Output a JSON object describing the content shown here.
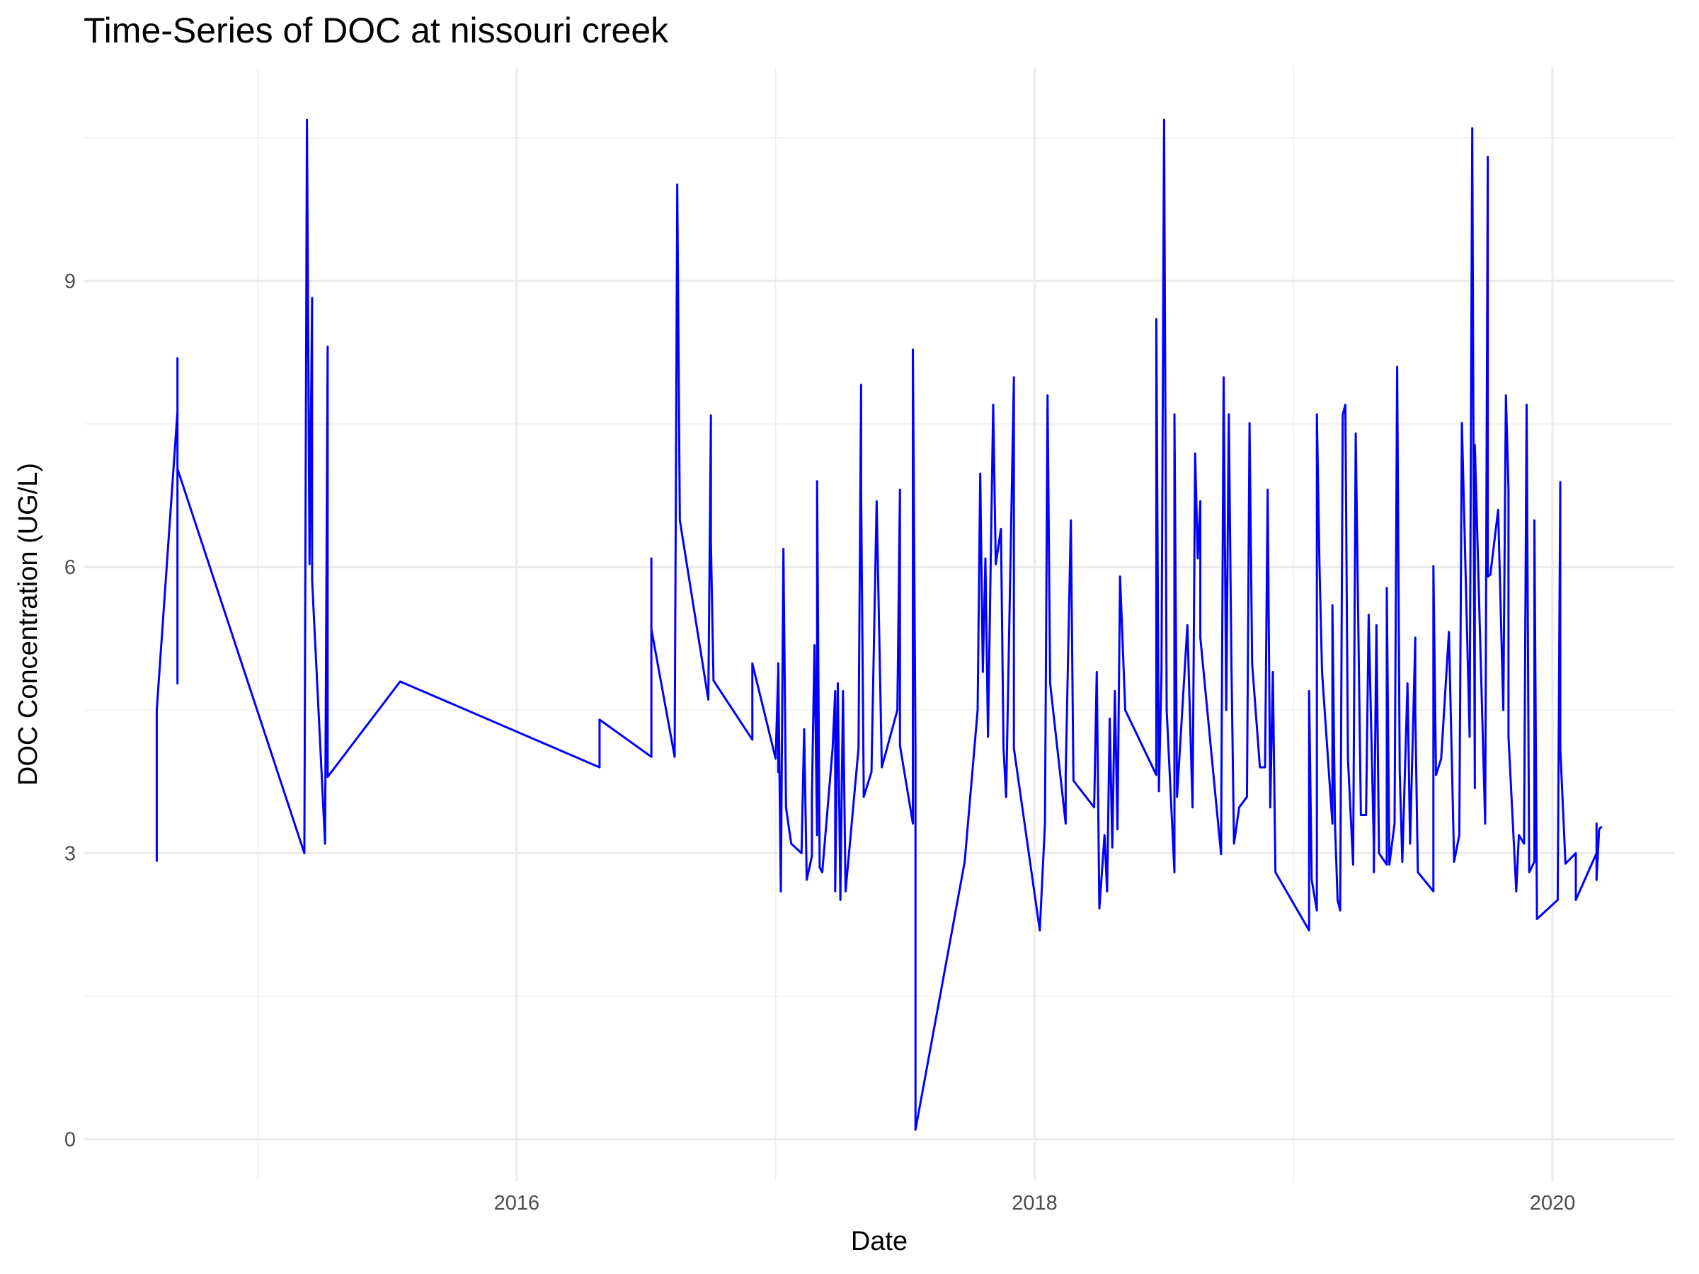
{
  "chart_data": {
    "type": "line",
    "title": "Time-Series of DOC at nissouri creek",
    "x_label": "Date",
    "y_label": "DOC Concentration (UG/L)",
    "color": "#0000ff",
    "grid": true,
    "xlim": [
      2014.33,
      2020.47
    ],
    "ylim": [
      -0.44,
      11.24
    ],
    "xticks": [
      2016,
      2018,
      2020
    ],
    "yticks": [
      0,
      3,
      6,
      9
    ],
    "x": [
      2014.61,
      2014.61,
      2014.69,
      2014.69,
      2014.69,
      2014.69,
      2015.18,
      2015.19,
      2015.2,
      2015.21,
      2015.21,
      2015.26,
      2015.27,
      2015.27,
      2015.55,
      2016.32,
      2016.32,
      2016.52,
      2016.52,
      2016.52,
      2016.61,
      2016.62,
      2016.63,
      2016.74,
      2016.75,
      2016.75,
      2016.76,
      2016.91,
      2016.91,
      2017.0,
      2017.01,
      2017.01,
      2017.01,
      2017.02,
      2017.03,
      2017.04,
      2017.06,
      2017.1,
      2017.11,
      2017.12,
      2017.14,
      2017.14,
      2017.15,
      2017.16,
      2017.16,
      2017.17,
      2017.18,
      2017.22,
      2017.23,
      2017.23,
      2017.24,
      2017.25,
      2017.26,
      2017.27,
      2017.32,
      2017.33,
      2017.33,
      2017.34,
      2017.34,
      2017.37,
      2017.39,
      2017.41,
      2017.47,
      2017.48,
      2017.48,
      2017.53,
      2017.53,
      2017.54,
      2017.54,
      2017.73,
      2017.78,
      2017.79,
      2017.8,
      2017.81,
      2017.82,
      2017.84,
      2017.85,
      2017.87,
      2017.88,
      2017.89,
      2017.92,
      2017.92,
      2018.02,
      2018.04,
      2018.05,
      2018.06,
      2018.12,
      2018.12,
      2018.14,
      2018.15,
      2018.23,
      2018.24,
      2018.25,
      2018.27,
      2018.28,
      2018.29,
      2018.3,
      2018.31,
      2018.32,
      2018.33,
      2018.35,
      2018.47,
      2018.47,
      2018.48,
      2018.49,
      2018.5,
      2018.51,
      2018.54,
      2018.54,
      2018.55,
      2018.59,
      2018.61,
      2018.62,
      2018.63,
      2018.64,
      2018.64,
      2018.72,
      2018.73,
      2018.74,
      2018.75,
      2018.76,
      2018.77,
      2018.79,
      2018.82,
      2018.83,
      2018.84,
      2018.87,
      2018.89,
      2018.9,
      2018.91,
      2018.92,
      2018.93,
      2019.06,
      2019.06,
      2019.07,
      2019.09,
      2019.09,
      2019.1,
      2019.11,
      2019.15,
      2019.15,
      2019.16,
      2019.17,
      2019.18,
      2019.19,
      2019.2,
      2019.21,
      2019.23,
      2019.24,
      2019.26,
      2019.28,
      2019.29,
      2019.31,
      2019.31,
      2019.32,
      2019.33,
      2019.36,
      2019.36,
      2019.37,
      2019.39,
      2019.4,
      2019.41,
      2019.42,
      2019.44,
      2019.45,
      2019.47,
      2019.47,
      2019.48,
      2019.54,
      2019.54,
      2019.55,
      2019.57,
      2019.6,
      2019.62,
      2019.64,
      2019.65,
      2019.68,
      2019.69,
      2019.7,
      2019.7,
      2019.74,
      2019.75,
      2019.75,
      2019.76,
      2019.79,
      2019.81,
      2019.82,
      2019.83,
      2019.83,
      2019.86,
      2019.87,
      2019.89,
      2019.9,
      2019.91,
      2019.93,
      2019.93,
      2019.94,
      2020.02,
      2020.03,
      2020.03,
      2020.05,
      2020.09,
      2020.09,
      2020.17,
      2020.17,
      2020.17,
      2020.18,
      2020.19
    ],
    "values": [
      2.91,
      4.5,
      7.63,
      8.19,
      4.78,
      7.03,
      3.0,
      10.69,
      6.03,
      8.82,
      5.86,
      3.1,
      8.31,
      3.8,
      4.8,
      3.9,
      4.4,
      4.01,
      6.09,
      5.35,
      4.01,
      10.01,
      6.49,
      4.61,
      7.59,
      6.26,
      4.81,
      4.19,
      4.99,
      3.99,
      4.9,
      3.85,
      4.99,
      2.6,
      6.19,
      3.48,
      3.1,
      3.0,
      4.3,
      2.72,
      2.97,
      3.59,
      5.18,
      3.19,
      6.9,
      2.85,
      2.8,
      4.1,
      4.7,
      2.6,
      4.78,
      2.51,
      4.7,
      2.6,
      4.1,
      7.91,
      6.81,
      3.7,
      3.59,
      3.85,
      6.69,
      3.9,
      4.5,
      6.81,
      4.13,
      3.31,
      8.28,
      4.1,
      0.1,
      2.91,
      4.5,
      6.98,
      4.9,
      6.09,
      4.22,
      7.7,
      6.03,
      6.4,
      4.1,
      3.59,
      7.99,
      4.1,
      2.19,
      3.31,
      7.8,
      4.78,
      3.31,
      3.82,
      6.49,
      3.76,
      3.48,
      4.9,
      2.42,
      3.19,
      2.6,
      4.41,
      3.06,
      4.7,
      3.25,
      5.9,
      4.5,
      3.82,
      8.6,
      3.65,
      4.9,
      10.69,
      4.5,
      2.8,
      7.6,
      3.59,
      5.39,
      3.48,
      7.19,
      6.09,
      6.69,
      5.26,
      2.99,
      7.99,
      4.5,
      7.6,
      4.99,
      3.1,
      3.48,
      3.59,
      7.51,
      4.99,
      3.9,
      3.9,
      6.81,
      3.48,
      4.9,
      2.8,
      2.19,
      4.7,
      2.72,
      2.4,
      7.6,
      6.03,
      4.9,
      3.31,
      5.6,
      3.31,
      2.51,
      2.4,
      7.6,
      7.7,
      3.99,
      2.88,
      7.4,
      3.4,
      3.4,
      5.5,
      3.08,
      2.8,
      5.39,
      3.0,
      2.88,
      5.78,
      2.88,
      3.31,
      8.1,
      3.85,
      2.91,
      4.78,
      3.1,
      5.26,
      4.5,
      2.8,
      2.6,
      6.01,
      3.82,
      3.99,
      5.32,
      2.91,
      3.19,
      7.51,
      4.22,
      10.6,
      3.68,
      7.28,
      3.31,
      10.3,
      5.9,
      5.92,
      6.6,
      4.5,
      7.8,
      6.81,
      4.22,
      2.6,
      3.19,
      3.1,
      7.7,
      2.8,
      2.91,
      6.49,
      2.31,
      2.51,
      6.89,
      4.1,
      2.89,
      3.0,
      2.51,
      3.0,
      3.31,
      2.72,
      3.25,
      3.28
    ]
  }
}
